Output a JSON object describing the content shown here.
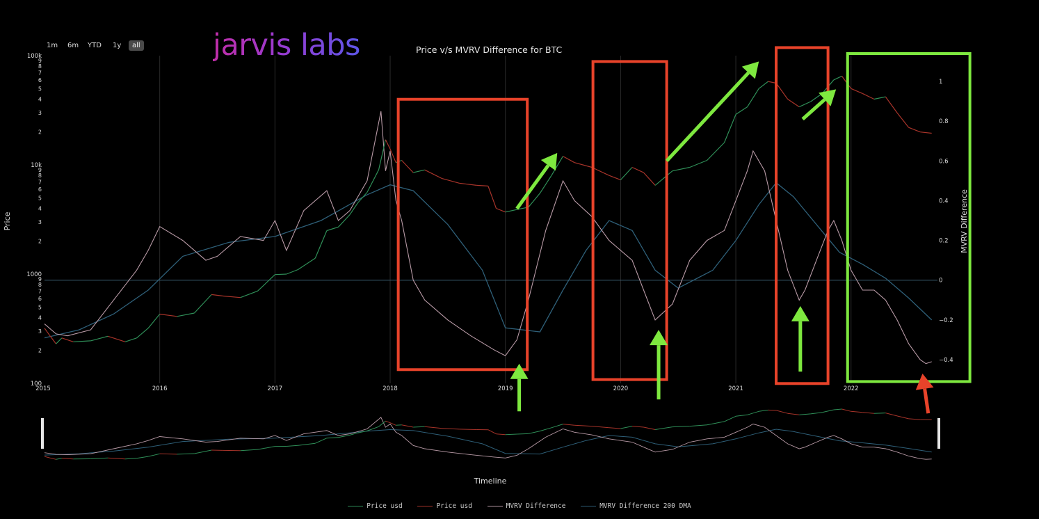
{
  "logo": "jarvis labs",
  "range_buttons": [
    {
      "label": "1m",
      "active": false
    },
    {
      "label": "6m",
      "active": false
    },
    {
      "label": "YTD",
      "active": false
    },
    {
      "label": "1y",
      "active": false
    },
    {
      "label": "all",
      "active": true
    }
  ],
  "chart_data": {
    "type": "line",
    "title": "Price v/s MVRV Difference for BTC",
    "xlabel": "Timeline",
    "ylabel": "Price",
    "y2label": "MVRV Difference",
    "x_range": [
      2015.0,
      2022.75
    ],
    "y_scale": "log",
    "y_range": [
      100,
      100000
    ],
    "y_major_ticks": [
      "100",
      "1000",
      "10k",
      "100k"
    ],
    "y_minor_labels": [
      "2",
      "3",
      "4",
      "5",
      "6",
      "7",
      "8",
      "9"
    ],
    "y2_range": [
      -0.52,
      1.1
    ],
    "y2_ticks": [
      1,
      0.8,
      0.6,
      0.4,
      0.2,
      0,
      -0.2,
      -0.4
    ],
    "x_ticks": [
      "2015",
      "2016",
      "2017",
      "2018",
      "2019",
      "2020",
      "2021",
      "2022"
    ],
    "colors": {
      "price_green": "#2f8f58",
      "price_red": "#a8342a",
      "mvrv": "#b89aa6",
      "dma": "#2e5f78",
      "zero_line": "#3a5f72",
      "grid": "#2a2a2a"
    },
    "legend": [
      {
        "name": "Price usd",
        "color": "#2f8f58"
      },
      {
        "name": "Price usd",
        "color": "#a8342a"
      },
      {
        "name": "MVRV Difference",
        "color": "#b89aa6"
      },
      {
        "name": "MVRV Difference 200 DMA",
        "color": "#2e5f78"
      }
    ],
    "price_series": {
      "x": [
        2015.0,
        2015.05,
        2015.1,
        2015.15,
        2015.25,
        2015.4,
        2015.55,
        2015.7,
        2015.8,
        2015.9,
        2016.0,
        2016.15,
        2016.3,
        2016.45,
        2016.55,
        2016.7,
        2016.85,
        2017.0,
        2017.1,
        2017.2,
        2017.35,
        2017.45,
        2017.55,
        2017.65,
        2017.72,
        2017.8,
        2017.9,
        2017.96,
        2018.0,
        2018.05,
        2018.1,
        2018.2,
        2018.3,
        2018.45,
        2018.6,
        2018.75,
        2018.85,
        2018.92,
        2019.0,
        2019.1,
        2019.2,
        2019.3,
        2019.4,
        2019.5,
        2019.6,
        2019.75,
        2019.9,
        2020.0,
        2020.1,
        2020.2,
        2020.3,
        2020.45,
        2020.6,
        2020.75,
        2020.9,
        2021.0,
        2021.1,
        2021.2,
        2021.28,
        2021.35,
        2021.45,
        2021.55,
        2021.65,
        2021.75,
        2021.85,
        2021.92,
        2022.0,
        2022.1,
        2022.2,
        2022.3,
        2022.4,
        2022.5,
        2022.6,
        2022.7
      ],
      "y": [
        320,
        270,
        230,
        260,
        240,
        245,
        270,
        240,
        260,
        320,
        430,
        410,
        440,
        650,
        630,
        610,
        700,
        990,
        1000,
        1100,
        1400,
        2500,
        2700,
        3500,
        4500,
        5600,
        9000,
        17000,
        14000,
        10500,
        11000,
        8500,
        9000,
        7500,
        6800,
        6500,
        6400,
        4000,
        3700,
        3900,
        4100,
        5500,
        8000,
        12000,
        10500,
        9500,
        8000,
        7300,
        9500,
        8500,
        6500,
        8800,
        9500,
        11000,
        16000,
        29000,
        34000,
        50000,
        58000,
        56000,
        40000,
        34000,
        38000,
        45000,
        60000,
        65000,
        50000,
        45000,
        40000,
        42000,
        30000,
        22000,
        20000,
        19500
      ]
    },
    "mvrv_series": {
      "x": [
        2015.0,
        2015.1,
        2015.2,
        2015.4,
        2015.6,
        2015.8,
        2015.9,
        2016.0,
        2016.2,
        2016.4,
        2016.5,
        2016.7,
        2016.9,
        2017.0,
        2017.1,
        2017.25,
        2017.45,
        2017.55,
        2017.65,
        2017.8,
        2017.92,
        2017.96,
        2018.0,
        2018.05,
        2018.1,
        2018.2,
        2018.3,
        2018.5,
        2018.7,
        2018.9,
        2019.0,
        2019.1,
        2019.2,
        2019.35,
        2019.5,
        2019.6,
        2019.75,
        2019.9,
        2020.0,
        2020.1,
        2020.2,
        2020.3,
        2020.45,
        2020.6,
        2020.75,
        2020.9,
        2021.0,
        2021.1,
        2021.15,
        2021.25,
        2021.35,
        2021.45,
        2021.55,
        2021.6,
        2021.7,
        2021.8,
        2021.85,
        2021.92,
        2022.0,
        2022.1,
        2022.2,
        2022.3,
        2022.4,
        2022.5,
        2022.6,
        2022.65,
        2022.7
      ],
      "y": [
        -0.22,
        -0.27,
        -0.28,
        -0.25,
        -0.1,
        0.05,
        0.15,
        0.27,
        0.2,
        0.1,
        0.12,
        0.22,
        0.2,
        0.3,
        0.15,
        0.35,
        0.45,
        0.3,
        0.35,
        0.5,
        0.85,
        0.55,
        0.65,
        0.4,
        0.3,
        0.0,
        -0.1,
        -0.2,
        -0.28,
        -0.35,
        -0.38,
        -0.3,
        -0.1,
        0.25,
        0.5,
        0.4,
        0.32,
        0.2,
        0.15,
        0.1,
        -0.05,
        -0.2,
        -0.12,
        0.1,
        0.2,
        0.25,
        0.4,
        0.55,
        0.65,
        0.55,
        0.3,
        0.05,
        -0.1,
        -0.05,
        0.1,
        0.25,
        0.3,
        0.2,
        0.05,
        -0.05,
        -0.05,
        -0.1,
        -0.2,
        -0.32,
        -0.4,
        -0.42,
        -0.41
      ]
    },
    "dma_series": {
      "x": [
        2015.0,
        2015.3,
        2015.6,
        2015.9,
        2016.2,
        2016.6,
        2017.0,
        2017.4,
        2017.8,
        2018.0,
        2018.2,
        2018.5,
        2018.8,
        2019.0,
        2019.3,
        2019.5,
        2019.7,
        2019.9,
        2020.1,
        2020.3,
        2020.5,
        2020.8,
        2021.0,
        2021.2,
        2021.35,
        2021.5,
        2021.7,
        2021.9,
        2022.1,
        2022.3,
        2022.5,
        2022.7
      ],
      "y": [
        -0.29,
        -0.25,
        -0.17,
        -0.05,
        0.12,
        0.19,
        0.22,
        0.3,
        0.43,
        0.48,
        0.45,
        0.28,
        0.05,
        -0.24,
        -0.26,
        -0.05,
        0.15,
        0.3,
        0.25,
        0.05,
        -0.04,
        0.05,
        0.2,
        0.38,
        0.49,
        0.42,
        0.28,
        0.14,
        0.08,
        0.01,
        -0.09,
        -0.2
      ]
    }
  },
  "annotations": [
    {
      "type": "box",
      "color": "#e8432a",
      "x0": 2018.07,
      "x1": 2019.19,
      "y2_top": 0.91,
      "y2_bottom": -0.45
    },
    {
      "type": "box",
      "color": "#e8432a",
      "x0": 2019.76,
      "x1": 2020.4,
      "y2_top": 1.1,
      "y2_bottom": -0.5
    },
    {
      "type": "box",
      "color": "#e8432a",
      "x0": 2021.35,
      "x1": 2021.8,
      "y2_top": 1.17,
      "y2_bottom": -0.52
    },
    {
      "type": "box",
      "color": "#7ee83f",
      "x0": 2021.97,
      "x1": 2022.97,
      "y2_top": 1.14,
      "y2_bottom": -0.51
    },
    {
      "type": "arrow",
      "color": "#7ee83f",
      "from": [
        2019.1,
        0.36
      ],
      "to": [
        2019.45,
        0.64
      ]
    },
    {
      "type": "arrow",
      "color": "#7ee83f",
      "from": [
        2020.4,
        0.6
      ],
      "to": [
        2021.2,
        1.1
      ]
    },
    {
      "type": "arrow",
      "color": "#7ee83f",
      "from": [
        2021.58,
        0.81
      ],
      "to": [
        2021.87,
        0.96
      ]
    },
    {
      "type": "arrow",
      "color": "#7ee83f",
      "from": [
        2019.12,
        -0.66
      ],
      "to": [
        2019.12,
        -0.42
      ]
    },
    {
      "type": "arrow",
      "color": "#7ee83f",
      "from": [
        2020.33,
        -0.6
      ],
      "to": [
        2020.33,
        -0.25
      ]
    },
    {
      "type": "arrow",
      "color": "#7ee83f",
      "from": [
        2021.56,
        -0.46
      ],
      "to": [
        2021.56,
        -0.13
      ]
    },
    {
      "type": "arrow",
      "color": "#e8432a",
      "from": [
        2022.67,
        -0.67
      ],
      "to": [
        2022.62,
        -0.47
      ]
    }
  ]
}
